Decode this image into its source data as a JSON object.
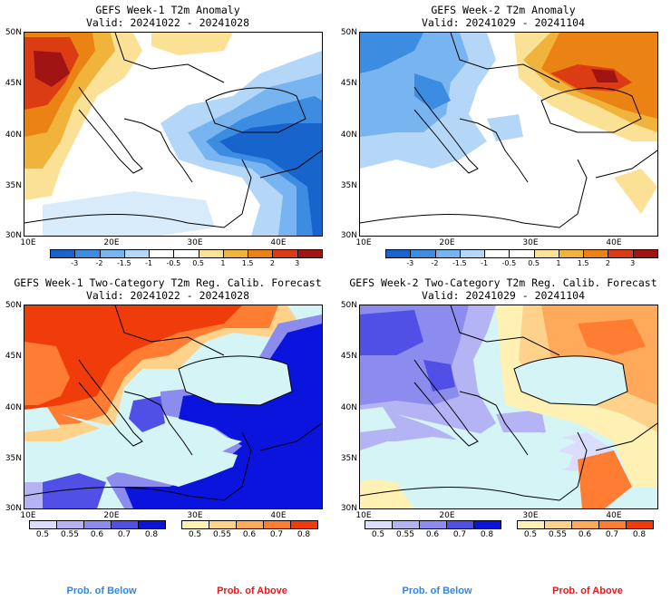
{
  "colors": {
    "below_label": "#2d87e6",
    "above_label": "#e51919",
    "sea": "#d4f4f6",
    "anom_scale": [
      "#1864cd",
      "#3c8ce1",
      "#78b4f0",
      "#b4d7f8",
      "#ffffff",
      "#ffffff",
      "#fae196",
      "#f0b43c",
      "#eb8214",
      "#dc3c14",
      "#a01414"
    ],
    "below_scale": [
      "#dcdcff",
      "#b4b4f5",
      "#8c8cee",
      "#5050e6",
      "#0a14dc"
    ],
    "above_scale": [
      "#fff0b4",
      "#ffd28c",
      "#ffaa5a",
      "#ff7d32",
      "#f03c0a"
    ]
  },
  "panels": [
    {
      "title_line1": "GEFS Week-1 T2m Anomaly",
      "title_line2": "Valid: 20241022 - 20241028",
      "kind": "anomaly",
      "y_labels": [
        "50N",
        "45N",
        "40N",
        "35N",
        "30N"
      ],
      "x_labels": [
        "10E",
        "20E",
        "30E",
        "40E"
      ],
      "colorbar_ticks": [
        "-3",
        "-2",
        "-1.5",
        "-1",
        "-0.5",
        "0.5",
        "1",
        "1.5",
        "2",
        "3"
      ]
    },
    {
      "title_line1": "GEFS Week-2 T2m Anomaly",
      "title_line2": "Valid: 20241029 - 20241104",
      "kind": "anomaly",
      "y_labels": [
        "50N",
        "45N",
        "40N",
        "35N",
        "30N"
      ],
      "x_labels": [
        "10E",
        "20E",
        "30E",
        "40E"
      ],
      "colorbar_ticks": [
        "-3",
        "-2",
        "-1.5",
        "-1",
        "-0.5",
        "0.5",
        "1",
        "1.5",
        "2",
        "3"
      ]
    },
    {
      "title_line1": "GEFS Week-1 Two-Category T2m Reg. Calib. Forecast",
      "title_line2": "Valid: 20241022 - 20241028",
      "kind": "prob",
      "y_labels": [
        "50N",
        "45N",
        "40N",
        "35N",
        "30N"
      ],
      "x_labels": [
        "10E",
        "20E",
        "30E",
        "40E"
      ],
      "below_ticks": [
        "0.5",
        "0.55",
        "0.6",
        "0.7",
        "0.8"
      ],
      "above_ticks": [
        "0.5",
        "0.55",
        "0.6",
        "0.7",
        "0.8"
      ],
      "below_label": "Prob. of Below",
      "above_label": "Prob. of Above"
    },
    {
      "title_line1": "GEFS Week-2 Two-Category T2m Reg. Calib. Forecast",
      "title_line2": "Valid: 20241029 - 20241104",
      "kind": "prob",
      "y_labels": [
        "50N",
        "45N",
        "40N",
        "35N",
        "30N"
      ],
      "x_labels": [
        "10E",
        "20E",
        "30E",
        "40E"
      ],
      "below_ticks": [
        "0.5",
        "0.55",
        "0.6",
        "0.7",
        "0.8"
      ],
      "above_ticks": [
        "0.5",
        "0.55",
        "0.6",
        "0.7",
        "0.8"
      ],
      "below_label": "Prob. of Below",
      "above_label": "Prob. of Above"
    }
  ]
}
